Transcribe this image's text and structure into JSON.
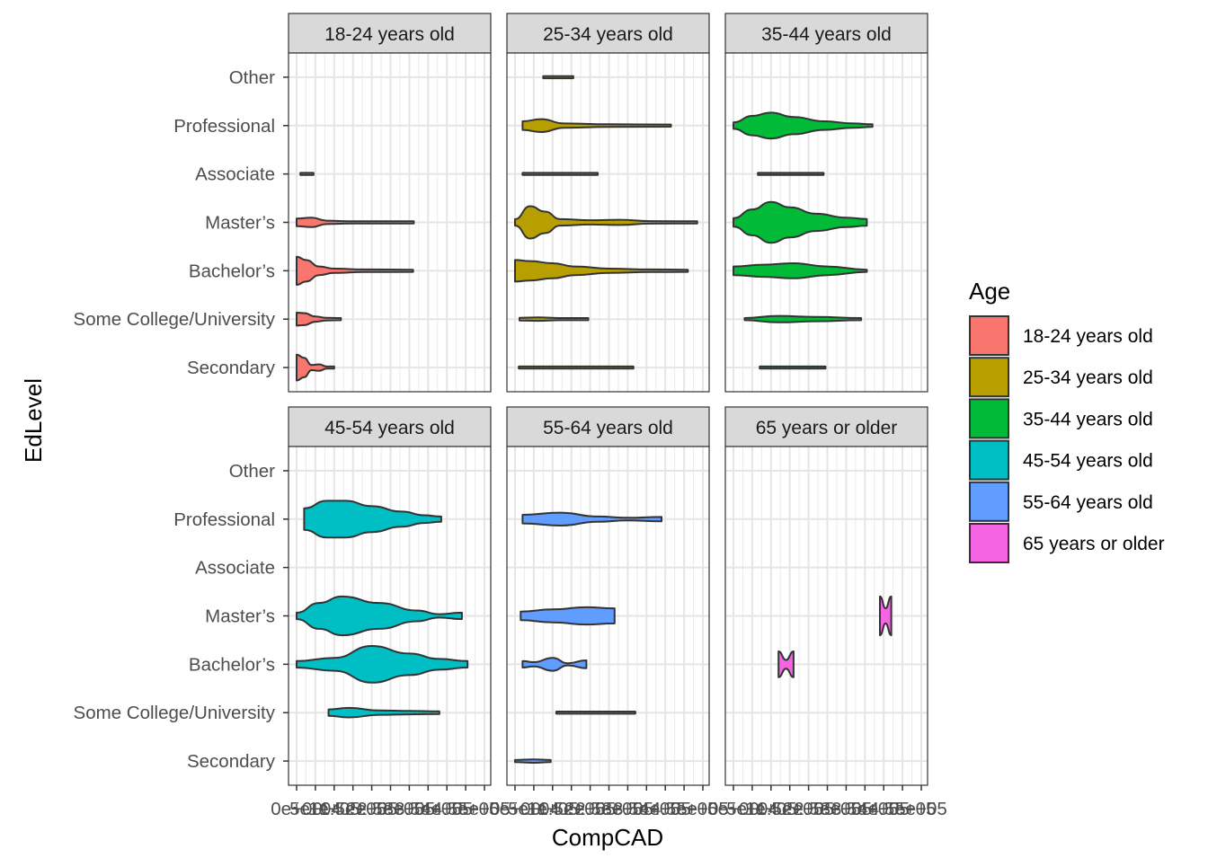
{
  "chart_data": {
    "type": "violin",
    "xlabel": "CompCAD",
    "ylabel": "EdLevel",
    "xlim": [
      0,
      500000
    ],
    "x_ticks": [
      0,
      50000,
      100000,
      150000,
      200000,
      250000,
      300000,
      350000,
      400000,
      450000,
      500000
    ],
    "x_tick_labels": [
      "0e+00",
      "5e+04",
      "1e+05",
      "1.5e+05",
      "2e+05",
      "2.5e+05",
      "3e+05",
      "3.5e+05",
      "4e+05",
      "4.5e+05",
      "5e+05"
    ],
    "categories": [
      "Secondary",
      "Some College/University",
      "Bachelor’s",
      "Master’s",
      "Associate",
      "Professional",
      "Other"
    ],
    "legend": {
      "title": "Age",
      "position": "right",
      "entries": [
        {
          "label": "18-24 years old",
          "color": "#F8766D"
        },
        {
          "label": "25-34 years old",
          "color": "#B79F00"
        },
        {
          "label": "35-44 years old",
          "color": "#00BA38"
        },
        {
          "label": "45-54 years old",
          "color": "#00BFC4"
        },
        {
          "label": "55-64 years old",
          "color": "#619CFF"
        },
        {
          "label": "65 years or older",
          "color": "#F564E3"
        }
      ]
    },
    "grid": true,
    "panels": [
      {
        "title": "18-24 years old",
        "color": "#F8766D",
        "violins": [
          {
            "category": "Secondary",
            "min": 0,
            "max": 100000,
            "profile": [
              [
                0,
                0.6
              ],
              [
                20000,
                0.45
              ],
              [
                40000,
                0.12
              ],
              [
                60000,
                0.15
              ],
              [
                80000,
                0.04
              ],
              [
                100000,
                0.02
              ]
            ]
          },
          {
            "category": "Some College/University",
            "min": 0,
            "max": 118000,
            "profile": [
              [
                0,
                0.3
              ],
              [
                20000,
                0.28
              ],
              [
                50000,
                0.12
              ],
              [
                80000,
                0.06
              ],
              [
                118000,
                0.02
              ]
            ]
          },
          {
            "category": "Bachelor’s",
            "min": 0,
            "max": 310000,
            "profile": [
              [
                0,
                0.65
              ],
              [
                25000,
                0.5
              ],
              [
                60000,
                0.2
              ],
              [
                100000,
                0.1
              ],
              [
                180000,
                0.06
              ],
              [
                310000,
                0.02
              ]
            ]
          },
          {
            "category": "Master’s",
            "min": 0,
            "max": 312000,
            "profile": [
              [
                0,
                0.18
              ],
              [
                40000,
                0.22
              ],
              [
                80000,
                0.08
              ],
              [
                150000,
                0.05
              ],
              [
                250000,
                0.03
              ],
              [
                312000,
                0.02
              ]
            ]
          },
          {
            "category": "Associate",
            "min": 10000,
            "max": 45000,
            "profile": [
              [
                10000,
                0.04
              ],
              [
                45000,
                0.04
              ]
            ]
          }
        ]
      },
      {
        "title": "25-34 years old",
        "color": "#B79F00",
        "violins": [
          {
            "category": "Secondary",
            "min": 10000,
            "max": 315000,
            "profile": [
              [
                10000,
                0.03
              ],
              [
                315000,
                0.03
              ]
            ]
          },
          {
            "category": "Some College/University",
            "min": 12000,
            "max": 195000,
            "profile": [
              [
                12000,
                0.06
              ],
              [
                60000,
                0.08
              ],
              [
                120000,
                0.05
              ],
              [
                195000,
                0.02
              ]
            ]
          },
          {
            "category": "Bachelor’s",
            "min": 0,
            "max": 460000,
            "profile": [
              [
                0,
                0.5
              ],
              [
                40000,
                0.45
              ],
              [
                100000,
                0.35
              ],
              [
                160000,
                0.2
              ],
              [
                250000,
                0.1
              ],
              [
                360000,
                0.06
              ],
              [
                460000,
                0.03
              ]
            ]
          },
          {
            "category": "Master’s",
            "min": 0,
            "max": 485000,
            "profile": [
              [
                0,
                0.15
              ],
              [
                40000,
                0.75
              ],
              [
                80000,
                0.5
              ],
              [
                120000,
                0.15
              ],
              [
                200000,
                0.1
              ],
              [
                280000,
                0.12
              ],
              [
                360000,
                0.06
              ],
              [
                485000,
                0.03
              ]
            ]
          },
          {
            "category": "Associate",
            "min": 20000,
            "max": 220000,
            "profile": [
              [
                20000,
                0.03
              ],
              [
                220000,
                0.03
              ]
            ]
          },
          {
            "category": "Professional",
            "min": 20000,
            "max": 415000,
            "profile": [
              [
                20000,
                0.2
              ],
              [
                70000,
                0.3
              ],
              [
                130000,
                0.1
              ],
              [
                250000,
                0.06
              ],
              [
                415000,
                0.03
              ]
            ]
          },
          {
            "category": "Other",
            "min": 75000,
            "max": 155000,
            "profile": [
              [
                75000,
                0.04
              ],
              [
                155000,
                0.04
              ]
            ]
          }
        ]
      },
      {
        "title": "35-44 years old",
        "color": "#00BA38",
        "violins": [
          {
            "category": "Secondary",
            "min": 70000,
            "max": 245000,
            "profile": [
              [
                70000,
                0.03
              ],
              [
                245000,
                0.03
              ]
            ]
          },
          {
            "category": "Some College/University",
            "min": 30000,
            "max": 340000,
            "profile": [
              [
                30000,
                0.05
              ],
              [
                120000,
                0.15
              ],
              [
                220000,
                0.1
              ],
              [
                340000,
                0.05
              ]
            ]
          },
          {
            "category": "Bachelor’s",
            "min": 0,
            "max": 355000,
            "profile": [
              [
                0,
                0.2
              ],
              [
                80000,
                0.28
              ],
              [
                160000,
                0.35
              ],
              [
                250000,
                0.2
              ],
              [
                355000,
                0.05
              ]
            ]
          },
          {
            "category": "Master’s",
            "min": 0,
            "max": 355000,
            "profile": [
              [
                0,
                0.2
              ],
              [
                50000,
                0.6
              ],
              [
                100000,
                0.95
              ],
              [
                150000,
                0.7
              ],
              [
                220000,
                0.4
              ],
              [
                300000,
                0.22
              ],
              [
                355000,
                0.16
              ]
            ]
          },
          {
            "category": "Associate",
            "min": 65000,
            "max": 240000,
            "profile": [
              [
                65000,
                0.03
              ],
              [
                240000,
                0.03
              ]
            ]
          },
          {
            "category": "Professional",
            "min": 0,
            "max": 370000,
            "profile": [
              [
                0,
                0.15
              ],
              [
                50000,
                0.45
              ],
              [
                100000,
                0.6
              ],
              [
                160000,
                0.4
              ],
              [
                240000,
                0.2
              ],
              [
                320000,
                0.1
              ],
              [
                370000,
                0.06
              ]
            ]
          }
        ]
      },
      {
        "title": "45-54 years old",
        "color": "#00BFC4",
        "violins": [
          {
            "category": "Some College/University",
            "min": 85000,
            "max": 380000,
            "profile": [
              [
                85000,
                0.15
              ],
              [
                140000,
                0.22
              ],
              [
                220000,
                0.1
              ],
              [
                300000,
                0.08
              ],
              [
                380000,
                0.06
              ]
            ]
          },
          {
            "category": "Bachelor’s",
            "min": 0,
            "max": 455000,
            "profile": [
              [
                0,
                0.15
              ],
              [
                100000,
                0.3
              ],
              [
                200000,
                0.85
              ],
              [
                300000,
                0.5
              ],
              [
                380000,
                0.25
              ],
              [
                455000,
                0.15
              ]
            ]
          },
          {
            "category": "Master’s",
            "min": 0,
            "max": 440000,
            "profile": [
              [
                0,
                0.15
              ],
              [
                60000,
                0.6
              ],
              [
                120000,
                0.9
              ],
              [
                220000,
                0.6
              ],
              [
                320000,
                0.25
              ],
              [
                380000,
                0.08
              ],
              [
                440000,
                0.15
              ]
            ]
          },
          {
            "category": "Professional",
            "min": 20000,
            "max": 385000,
            "profile": [
              [
                20000,
                0.5
              ],
              [
                80000,
                0.85
              ],
              [
                130000,
                0.85
              ],
              [
                200000,
                0.6
              ],
              [
                280000,
                0.35
              ],
              [
                340000,
                0.18
              ],
              [
                385000,
                0.12
              ]
            ]
          }
        ]
      },
      {
        "title": "55-64 years old",
        "color": "#619CFF",
        "violins": [
          {
            "category": "Secondary",
            "min": 0,
            "max": 95000,
            "profile": [
              [
                0,
                0.05
              ],
              [
                50000,
                0.08
              ],
              [
                95000,
                0.05
              ]
            ]
          },
          {
            "category": "Some College/University",
            "min": 110000,
            "max": 320000,
            "profile": [
              [
                110000,
                0.03
              ],
              [
                320000,
                0.03
              ]
            ]
          },
          {
            "category": "Bachelor’s",
            "min": 20000,
            "max": 190000,
            "profile": [
              [
                20000,
                0.15
              ],
              [
                50000,
                0.1
              ],
              [
                100000,
                0.3
              ],
              [
                140000,
                0.05
              ],
              [
                190000,
                0.18
              ]
            ]
          },
          {
            "category": "Master’s",
            "min": 15000,
            "max": 265000,
            "profile": [
              [
                15000,
                0.2
              ],
              [
                100000,
                0.3
              ],
              [
                190000,
                0.4
              ],
              [
                265000,
                0.35
              ]
            ]
          },
          {
            "category": "Professional",
            "min": 20000,
            "max": 390000,
            "profile": [
              [
                20000,
                0.2
              ],
              [
                120000,
                0.3
              ],
              [
                220000,
                0.12
              ],
              [
                300000,
                0.06
              ],
              [
                390000,
                0.1
              ]
            ]
          }
        ]
      },
      {
        "title": "65 years or older",
        "color": "#F564E3",
        "violins": [
          {
            "category": "Bachelor’s",
            "min": 120000,
            "max": 160000,
            "profile": [
              [
                120000,
                0.6
              ],
              [
                140000,
                0.2
              ],
              [
                160000,
                0.6
              ]
            ]
          },
          {
            "category": "Master’s",
            "min": 390000,
            "max": 420000,
            "profile": [
              [
                390000,
                0.9
              ],
              [
                405000,
                0.35
              ],
              [
                420000,
                0.9
              ]
            ]
          }
        ]
      }
    ]
  }
}
